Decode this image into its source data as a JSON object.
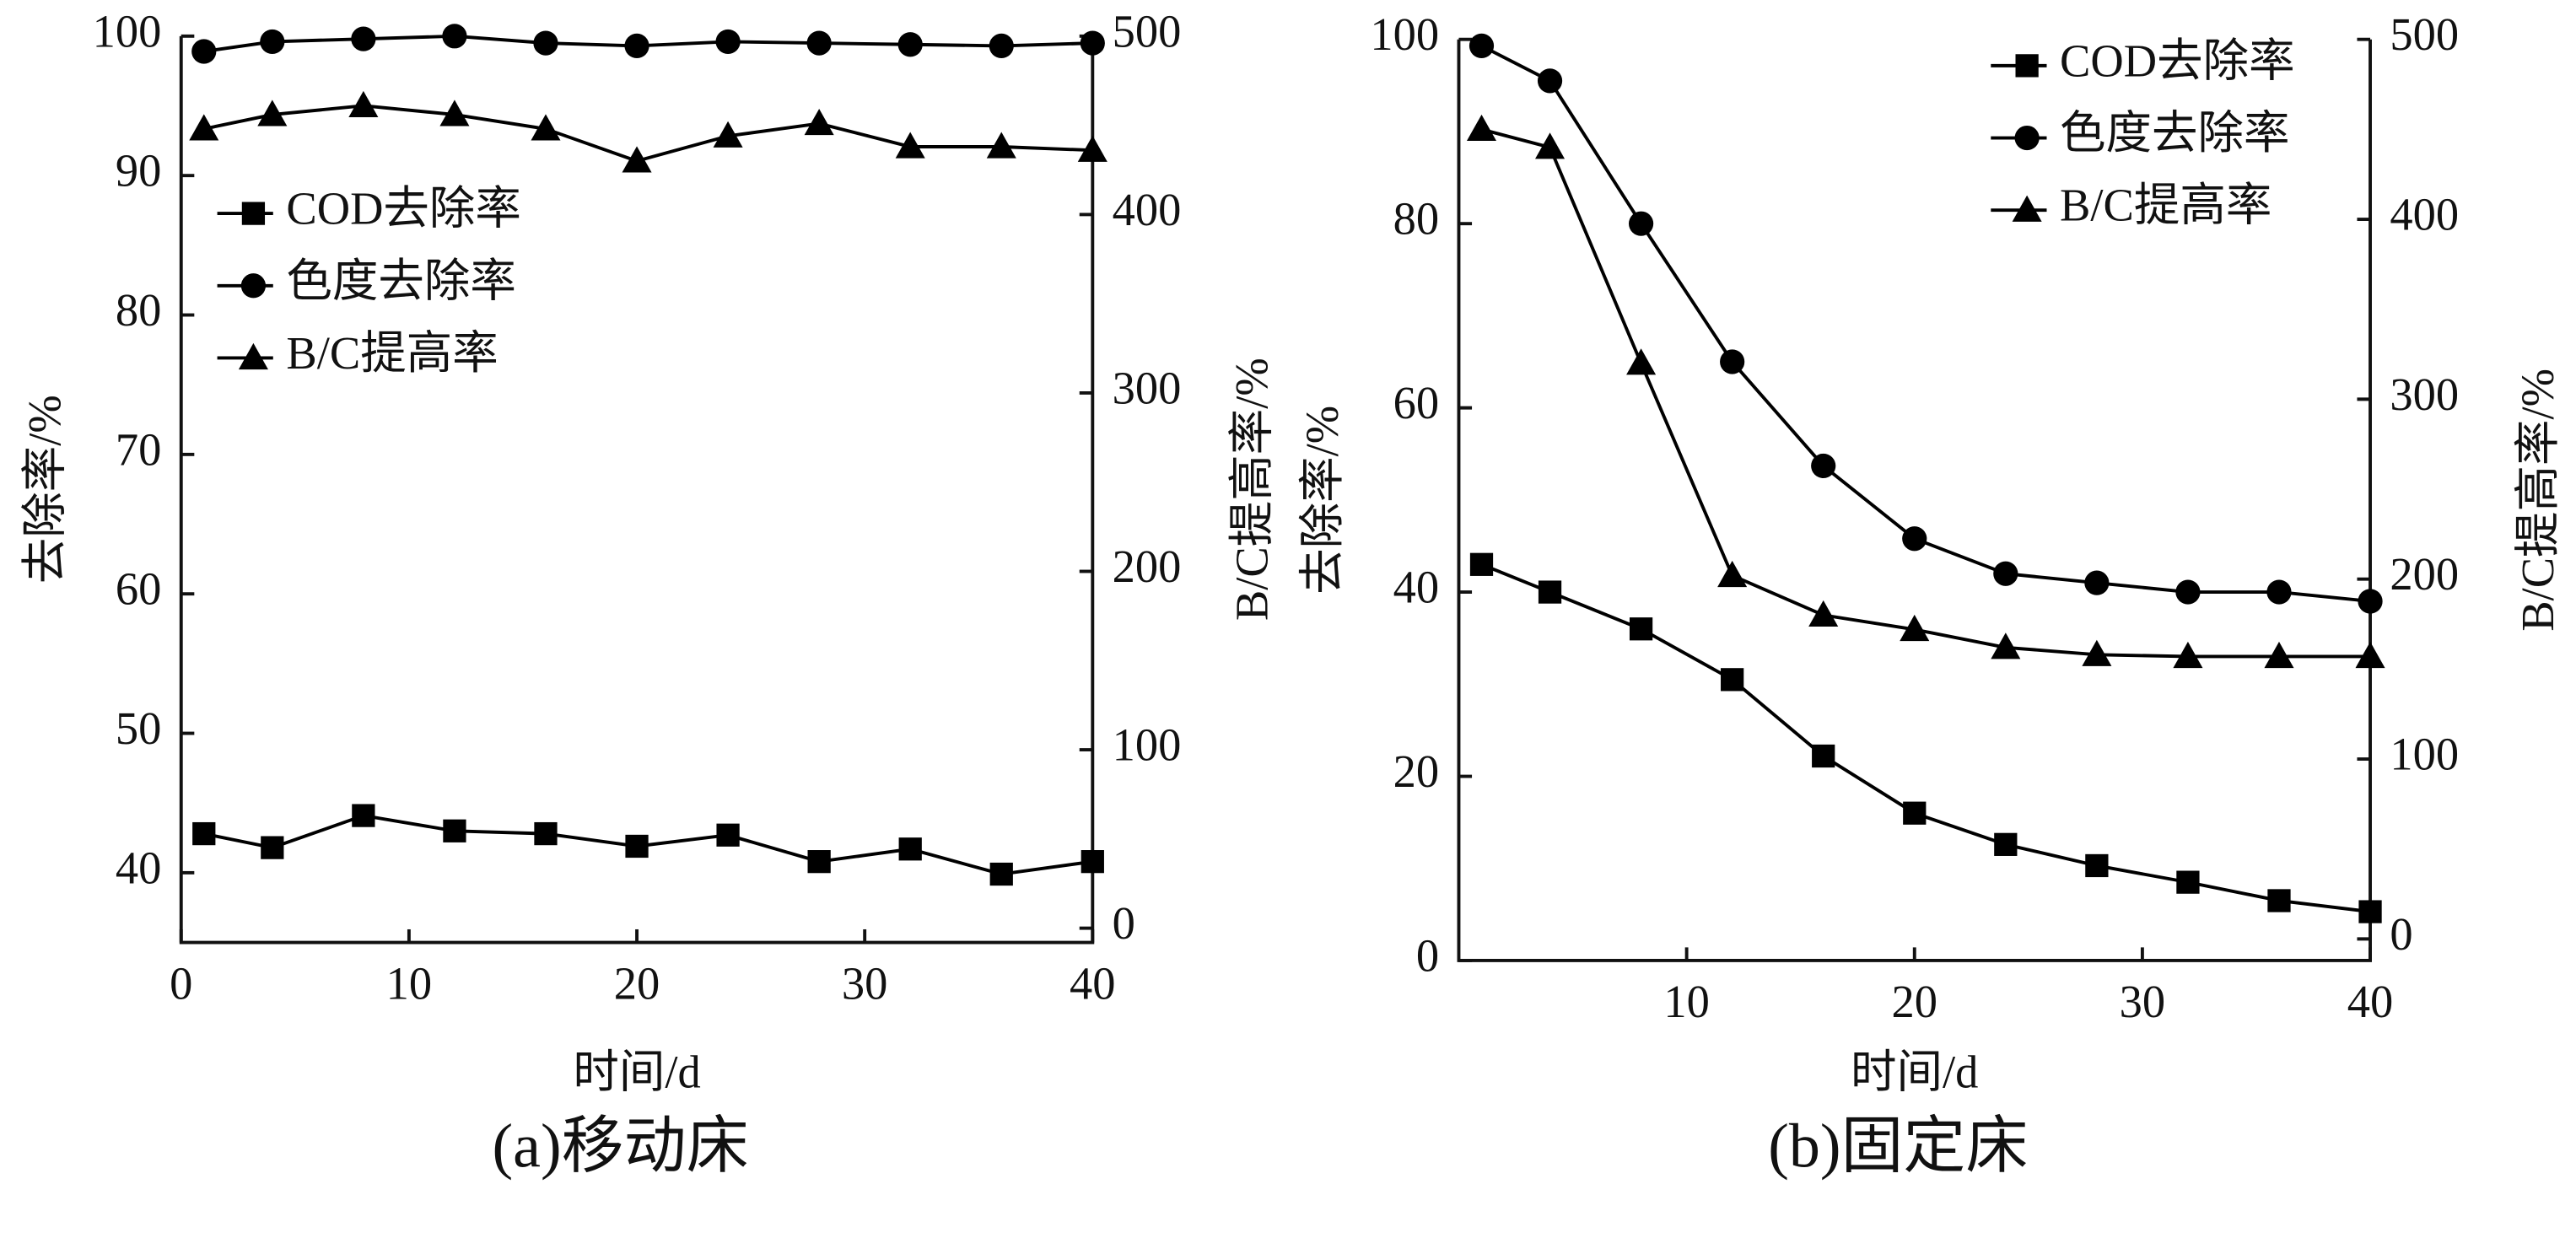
{
  "chart_data": [
    {
      "type": "line",
      "caption": "(a)移动床",
      "x_label": "时间/d",
      "y_label": "去除率/%",
      "y2_label": "B/C提高率/%",
      "legend": "center left",
      "x": [
        1,
        4,
        8,
        12,
        16,
        20,
        24,
        28,
        32,
        36,
        40
      ],
      "xlim": [
        0,
        40
      ],
      "xticks": [
        0,
        10,
        20,
        30,
        40
      ],
      "ylim": [
        35,
        100
      ],
      "yticks": [
        40,
        50,
        60,
        70,
        80,
        90,
        100
      ],
      "y2lim": [
        -8,
        500
      ],
      "y2ticks": [
        0,
        100,
        200,
        300,
        400,
        500
      ],
      "series": [
        {
          "name": "COD去除率",
          "color": "#000000",
          "marker": "square",
          "values": [
            42.8,
            41.8,
            44.1,
            43,
            42.8,
            41.9,
            42.7,
            40.8,
            41.7,
            39.9,
            40.8
          ]
        },
        {
          "name": "色度去除率",
          "color": "#000000",
          "marker": "circle",
          "values": [
            98.9,
            99.6,
            99.8,
            100,
            99.5,
            99.3,
            99.6,
            99.5,
            99.4,
            99.3,
            99.5
          ]
        },
        {
          "name": "B/C提高率",
          "color": "#000000",
          "marker": "triangle",
          "axis": "y2",
          "values": [
            448,
            456,
            461,
            456,
            448,
            430,
            444,
            451,
            438,
            438,
            436
          ]
        }
      ]
    },
    {
      "type": "line",
      "caption": "(b)固定床",
      "x_label": "时间/d",
      "y_label": "去除率/%",
      "y2_label": "B/C提高率/%",
      "legend": "upper right",
      "x": [
        1,
        4,
        8,
        12,
        16,
        20,
        24,
        28,
        32,
        36,
        40
      ],
      "xlim": [
        0,
        40
      ],
      "xticks": [
        10,
        20,
        30,
        40
      ],
      "ylim": [
        0,
        100
      ],
      "yticks": [
        0,
        20,
        40,
        60,
        80,
        100
      ],
      "y2lim": [
        -12,
        500
      ],
      "y2ticks": [
        0,
        100,
        200,
        300,
        400,
        500
      ],
      "series": [
        {
          "name": "COD去除率",
          "color": "#000000",
          "marker": "square",
          "values": [
            43,
            40,
            36,
            30.5,
            22.2,
            16,
            12.6,
            10.3,
            8.5,
            6.5,
            5.3
          ]
        },
        {
          "name": "色度去除率",
          "color": "#000000",
          "marker": "circle",
          "values": [
            99.3,
            95.5,
            80,
            65,
            53.7,
            45.8,
            42,
            41,
            40,
            40,
            39
          ]
        },
        {
          "name": "B/C提高率",
          "color": "#000000",
          "marker": "triangle",
          "axis": "y2",
          "values": [
            450,
            440,
            320,
            202,
            180,
            172,
            162,
            158,
            157,
            157,
            157
          ]
        }
      ]
    }
  ]
}
